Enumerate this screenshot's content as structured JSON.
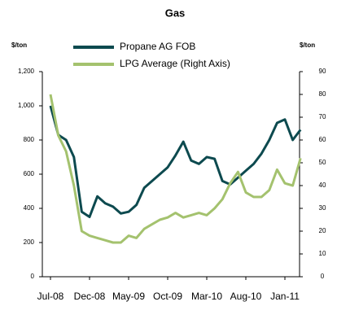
{
  "chart_data": {
    "type": "line",
    "title": "Gas",
    "y_label": "$/ton",
    "y2_label": "$/ton",
    "x": [
      "Jul-08",
      "Aug-08",
      "Sep-08",
      "Oct-08",
      "Nov-08",
      "Dec-08",
      "Jan-09",
      "Feb-09",
      "Mar-09",
      "Apr-09",
      "May-09",
      "Jun-09",
      "Jul-09",
      "Aug-09",
      "Sep-09",
      "Oct-09",
      "Nov-09",
      "Dec-09",
      "Jan-10",
      "Feb-10",
      "Mar-10",
      "Apr-10",
      "May-10",
      "Jun-10",
      "Jul-10",
      "Aug-10",
      "Sep-10",
      "Oct-10",
      "Nov-10",
      "Dec-10",
      "Jan-11",
      "Feb-11",
      "Mar-11"
    ],
    "xticks": [
      "Jul-08",
      "Dec-08",
      "May-09",
      "Oct-09",
      "Mar-10",
      "Aug-10",
      "Jan-11"
    ],
    "series": [
      {
        "name": "Propane AG FOB",
        "color": "#0d4a4f",
        "values": [
          1000,
          830,
          800,
          700,
          380,
          350,
          470,
          430,
          410,
          370,
          380,
          420,
          520,
          560,
          600,
          640,
          710,
          790,
          680,
          660,
          700,
          690,
          560,
          540,
          580,
          620,
          660,
          720,
          800,
          900,
          920,
          800,
          860
        ]
      },
      {
        "name": "LPG Average (Right Axis)",
        "color": "#a4c26e",
        "axis": "y2",
        "values": [
          80,
          62,
          55,
          40,
          20,
          18,
          17,
          16,
          15,
          15,
          18,
          17,
          21,
          23,
          25,
          26,
          28,
          26,
          27,
          28,
          27,
          30,
          34,
          41,
          46,
          37,
          35,
          35,
          38,
          47,
          41,
          40,
          52
        ]
      }
    ],
    "ylim": [
      0,
      1200
    ],
    "yticks": [
      0,
      200,
      400,
      600,
      800,
      {
        "value": 1000,
        "label": "1,000"
      },
      {
        "value": 1200,
        "label": "1,200"
      }
    ],
    "y2lim": [
      0,
      90
    ],
    "y2ticks": [
      0,
      10,
      20,
      30,
      40,
      50,
      60,
      70,
      80,
      90
    ],
    "legend": "top"
  }
}
